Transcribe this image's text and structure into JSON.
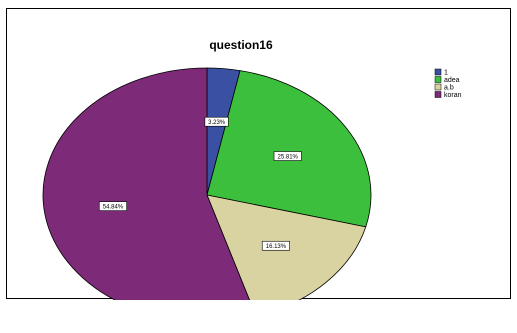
{
  "chart_data": {
    "type": "pie",
    "title": "question16",
    "categories": [
      "1",
      "adea",
      "a.b",
      "koran"
    ],
    "values": [
      3.23,
      25.81,
      16.13,
      54.84
    ],
    "data_labels": [
      "3.23%",
      "25.81%",
      "16.13%",
      "54.84%"
    ],
    "colors": [
      "#3a50a3",
      "#3cbf3c",
      "#d8d3a0",
      "#7d2a78"
    ],
    "legend_position": "top-right"
  }
}
